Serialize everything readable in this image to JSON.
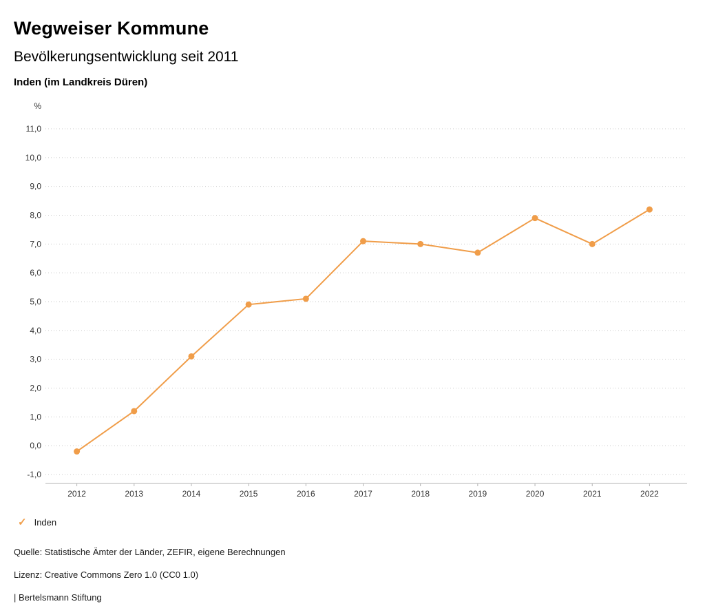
{
  "header": {
    "title": "Wegweiser Kommune"
  },
  "chart_data": {
    "type": "line",
    "title": "Bevölkerungsentwicklung seit 2011",
    "subtitle": "Inden (im Landkreis Düren)",
    "ylabel": "%",
    "ylim": [
      -1,
      11
    ],
    "ytick_values": [
      11,
      10,
      9,
      8,
      7,
      6,
      5,
      4,
      3,
      2,
      1,
      0,
      -1
    ],
    "ytick_labels": [
      "11,0",
      "10,0",
      "9,0",
      "8,0",
      "7,0",
      "6,0",
      "5,0",
      "4,0",
      "3,0",
      "2,0",
      "1,0",
      "0,0",
      "-1,0"
    ],
    "x": [
      "2012",
      "2013",
      "2014",
      "2015",
      "2016",
      "2017",
      "2018",
      "2019",
      "2020",
      "2021",
      "2022"
    ],
    "series": [
      {
        "name": "Inden",
        "color": "#f09d49",
        "values": [
          -0.2,
          1.2,
          3.1,
          4.9,
          5.1,
          7.1,
          7.0,
          6.7,
          7.9,
          7.0,
          8.2
        ]
      }
    ],
    "grid": "horizontal-dotted",
    "legend_position": "bottom-left"
  },
  "legend": {
    "check_glyph": "✓"
  },
  "footer": {
    "source": "Quelle: Statistische Ämter der Länder, ZEFIR, eigene Berechnungen",
    "license": "Lizenz: Creative Commons Zero 1.0 (CC0 1.0)",
    "attribution": "| Bertelsmann Stiftung"
  }
}
